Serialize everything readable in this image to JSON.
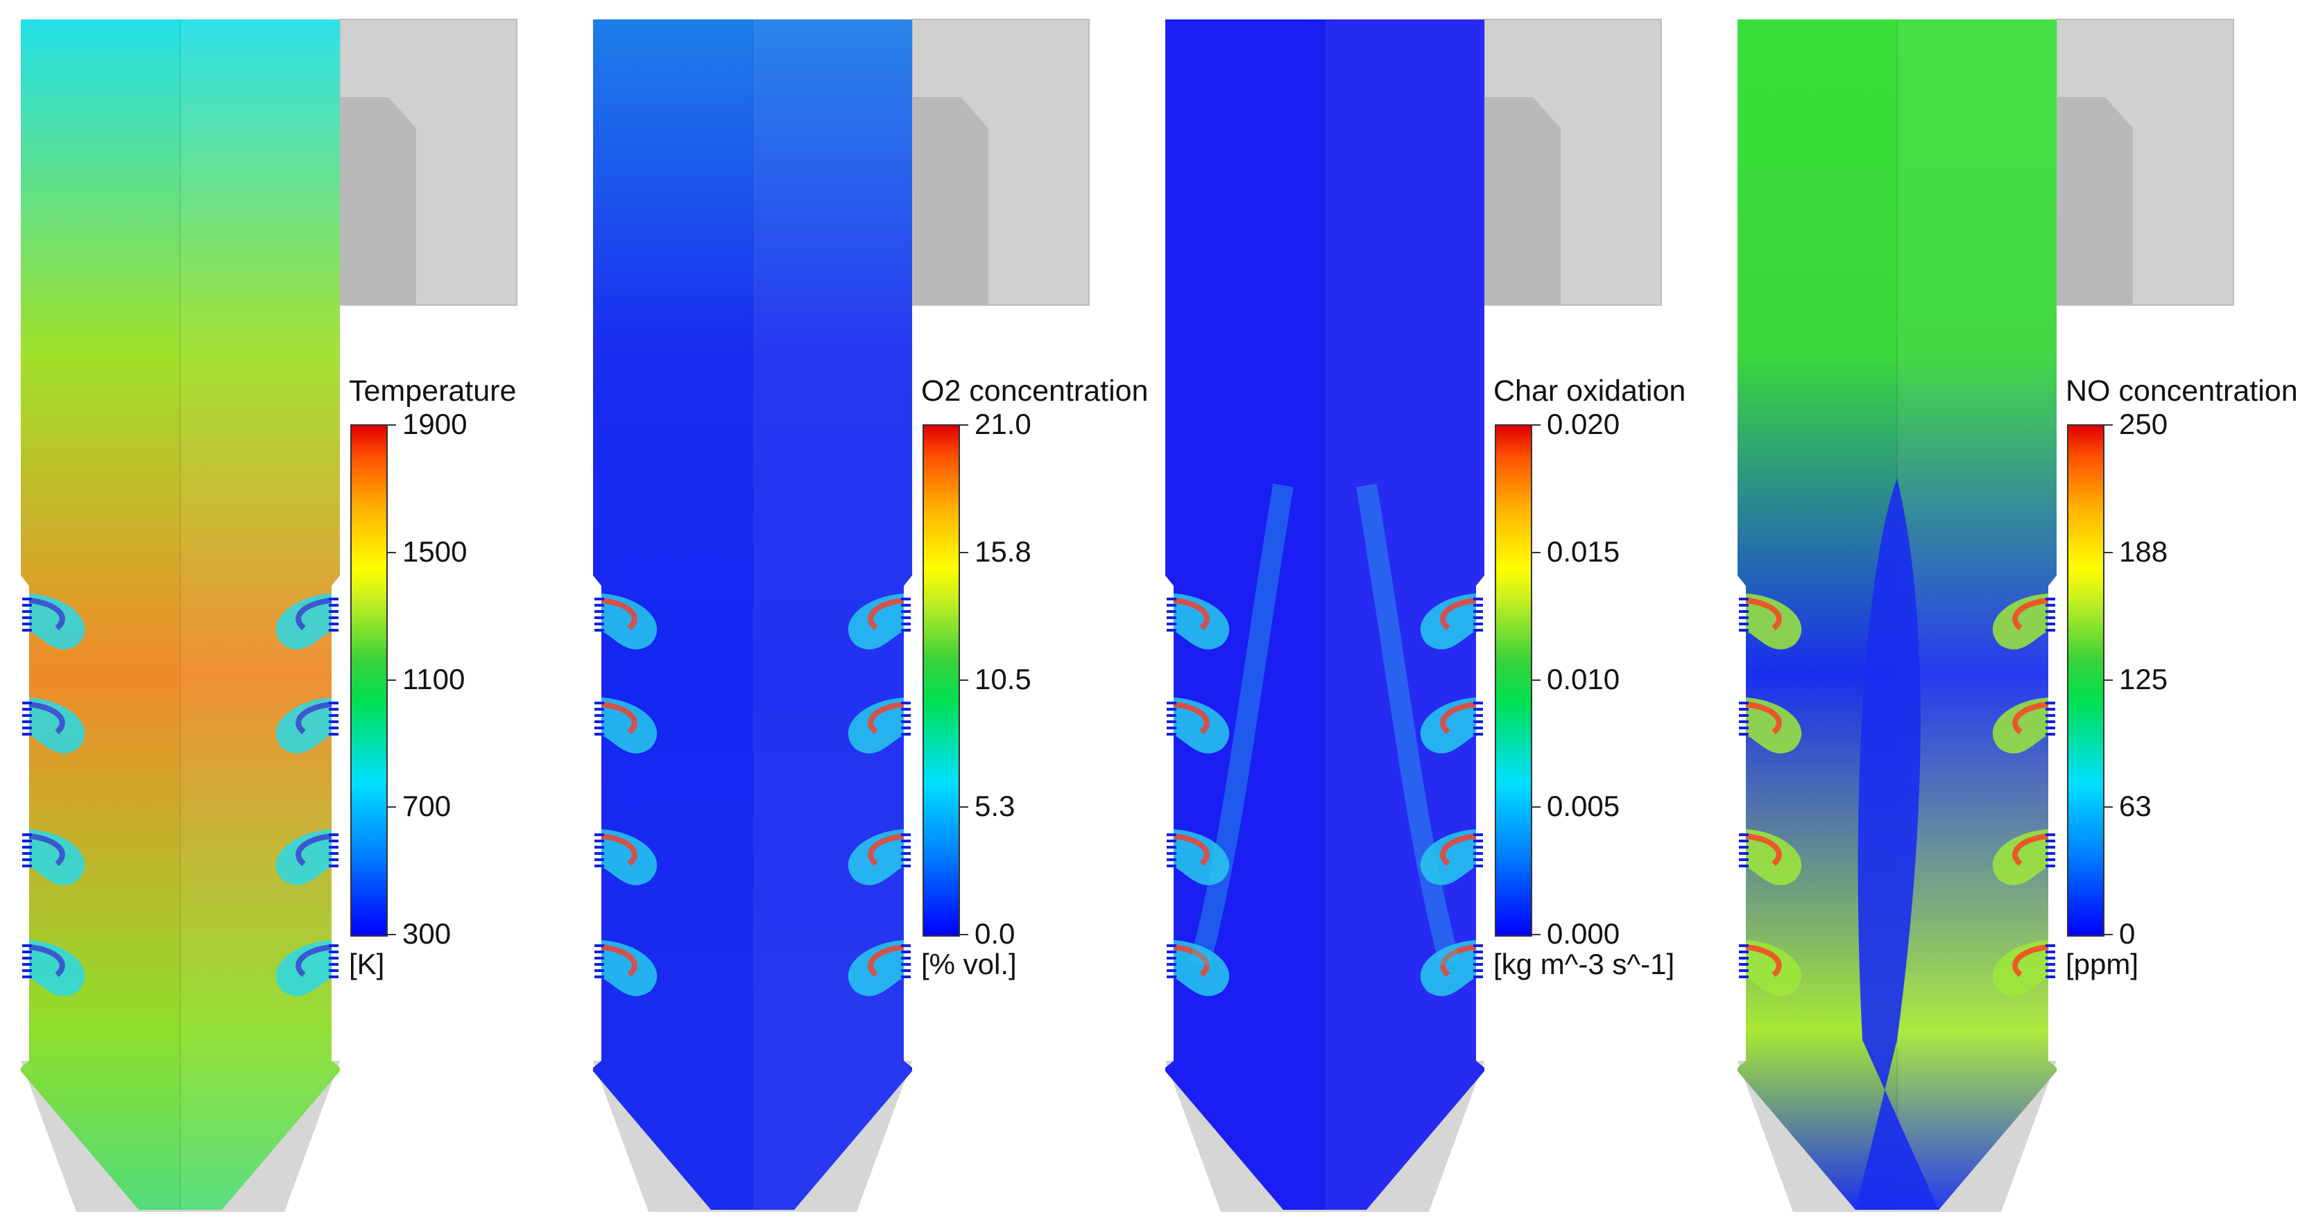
{
  "panels": [
    {
      "id": "temperature",
      "colorbar": {
        "title": "Temperature",
        "ticks": [
          "1900",
          "1500",
          "1100",
          "700",
          "300"
        ],
        "unit": "[K]"
      },
      "field": {
        "base": "#9fe02a",
        "top": "#22e0e8",
        "core": "#f08a2a",
        "lower": "#8ede2c",
        "hopper": "#52dc7a"
      }
    },
    {
      "id": "o2",
      "colorbar": {
        "title": "O2 concentration",
        "ticks": [
          "21.0",
          "15.8",
          "10.5",
          "5.3",
          "0.0"
        ],
        "unit": "[% vol.]"
      },
      "field": {
        "base": "#1a2cf0",
        "top": "#1e7ee8",
        "core": "#1526f2",
        "lower": "#1a2cf0",
        "hopper": "#1a2cf0"
      }
    },
    {
      "id": "char",
      "colorbar": {
        "title": "Char oxidation",
        "ticks": [
          "0.020",
          "0.015",
          "0.010",
          "0.005",
          "0.000"
        ],
        "unit": "[kg m^-3 s^-1]"
      },
      "field": {
        "base": "#1a1ef2",
        "top": "#1a1ef2",
        "core": "#1a1ef2",
        "lower": "#1a1ef2",
        "hopper": "#1a1ef2"
      }
    },
    {
      "id": "no",
      "colorbar": {
        "title": "NO concentration",
        "ticks": [
          "250",
          "188",
          "125",
          "63",
          "0"
        ],
        "unit": "[ppm]"
      },
      "field": {
        "base": "#3ad83a",
        "top": "#3ade3a",
        "core": "#1a2ef0",
        "lower": "#a8e834",
        "hopper": "#1a2ef0"
      }
    }
  ]
}
